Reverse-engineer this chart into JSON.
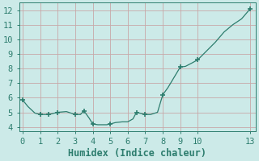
{
  "xlabel": "Humidex (Indice chaleur)",
  "x": [
    0,
    0.3,
    0.7,
    1.0,
    1.5,
    2.0,
    2.5,
    3.0,
    3.3,
    3.5,
    3.8,
    4.0,
    4.3,
    4.5,
    4.8,
    5.0,
    5.3,
    5.7,
    6.0,
    6.3,
    6.5,
    7.0,
    7.3,
    7.7,
    8.0,
    8.3,
    8.7,
    9.0,
    9.3,
    9.7,
    10.0,
    10.5,
    11.0,
    11.5,
    12.0,
    12.5,
    13.0
  ],
  "y": [
    5.85,
    5.4,
    4.95,
    4.85,
    4.85,
    5.0,
    5.05,
    4.85,
    4.85,
    5.1,
    4.6,
    4.2,
    4.15,
    4.15,
    4.15,
    4.2,
    4.3,
    4.35,
    4.35,
    4.55,
    5.0,
    4.85,
    4.85,
    5.0,
    6.2,
    6.7,
    7.5,
    8.1,
    8.15,
    8.4,
    8.6,
    9.2,
    9.8,
    10.5,
    11.0,
    11.4,
    12.1
  ],
  "markers_x": [
    0,
    1.0,
    1.5,
    2.0,
    3.0,
    3.5,
    4.0,
    5.0,
    6.5,
    7.0,
    8.0,
    9.0,
    10.0,
    13.0
  ],
  "markers_y": [
    5.85,
    4.85,
    4.85,
    5.0,
    4.85,
    5.1,
    4.2,
    4.2,
    5.0,
    4.85,
    6.2,
    8.1,
    8.6,
    12.1
  ],
  "xlim": [
    -0.2,
    13.3
  ],
  "ylim": [
    3.7,
    12.5
  ],
  "xticks": [
    0,
    1,
    2,
    3,
    4,
    5,
    6,
    7,
    8,
    9,
    10,
    13
  ],
  "yticks": [
    4,
    5,
    6,
    7,
    8,
    9,
    10,
    11,
    12
  ],
  "line_color": "#2d7d6e",
  "marker_color": "#2d7d6e",
  "bg_color": "#cceae8",
  "grid_color": "#c8a8a8",
  "spine_color": "#2d7d6e",
  "tick_label_color": "#2d7d6e",
  "xlabel_color": "#2d7d6e",
  "font_family": "monospace",
  "tick_fontsize": 7.5,
  "xlabel_fontsize": 8.5
}
